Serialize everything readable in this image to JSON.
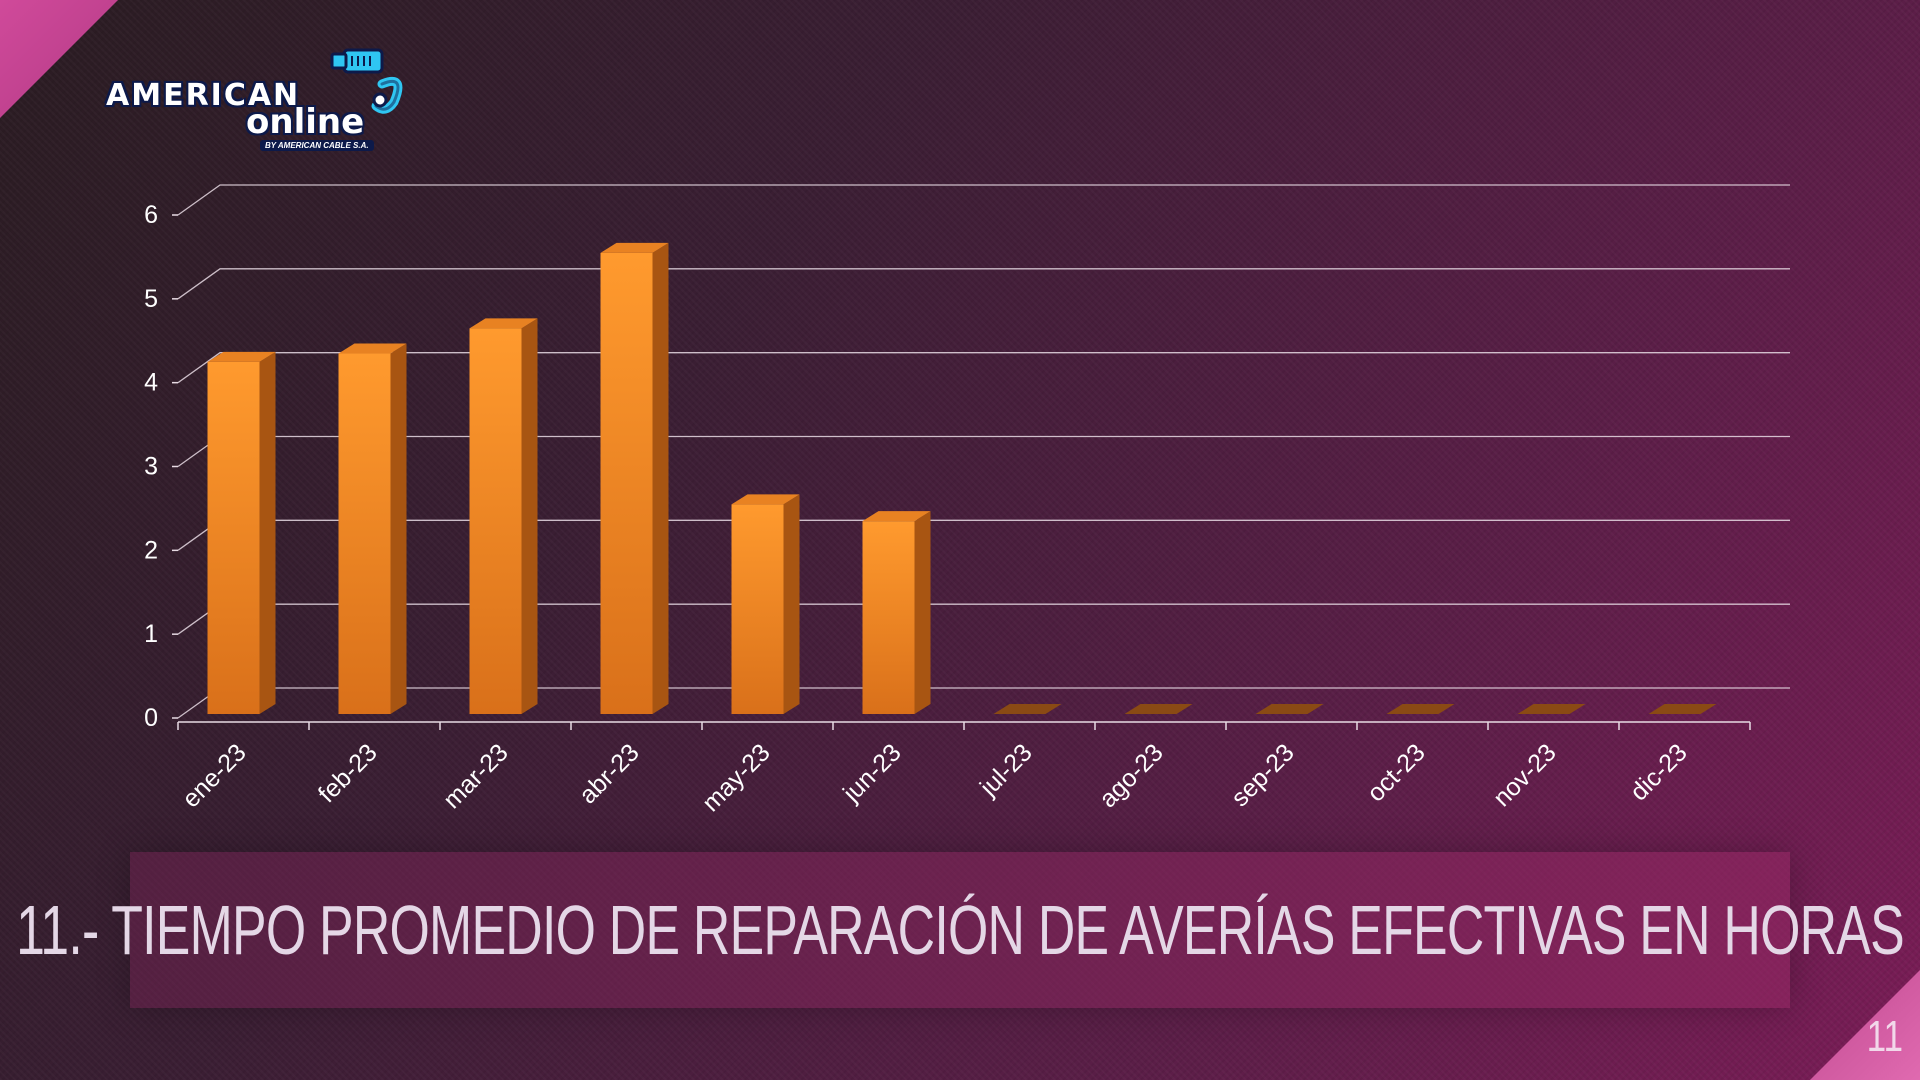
{
  "logo": {
    "line1": "AMERICAN",
    "line2": "online",
    "tagline": "BY AMERICAN CABLE S.A."
  },
  "slide": {
    "title": "11.- TIEMPO PROMEDIO DE REPARACIÓN DE AVERÍAS EFECTIVAS EN HORAS",
    "page_number": "11"
  },
  "colors": {
    "bar_front_top": "#ff9a2e",
    "bar_front_bottom": "#d9701a",
    "bar_side": "#a85512",
    "bar_top": "#e88222",
    "gridline": "#e8dbe4",
    "label": "#ffffff"
  },
  "chart_data": {
    "type": "bar",
    "categories": [
      "ene-23",
      "feb-23",
      "mar-23",
      "abr-23",
      "may-23",
      "jun-23",
      "jul-23",
      "ago-23",
      "sep-23",
      "oct-23",
      "nov-23",
      "dic-23"
    ],
    "values": [
      4.2,
      4.3,
      4.6,
      5.5,
      2.5,
      2.3,
      0,
      0,
      0,
      0,
      0,
      0
    ],
    "title": "",
    "xlabel": "",
    "ylabel": "",
    "ylim": [
      0,
      6
    ],
    "yticks": [
      0,
      1,
      2,
      3,
      4,
      5,
      6
    ],
    "grid": true,
    "legend": "none",
    "style": "3d-column"
  }
}
